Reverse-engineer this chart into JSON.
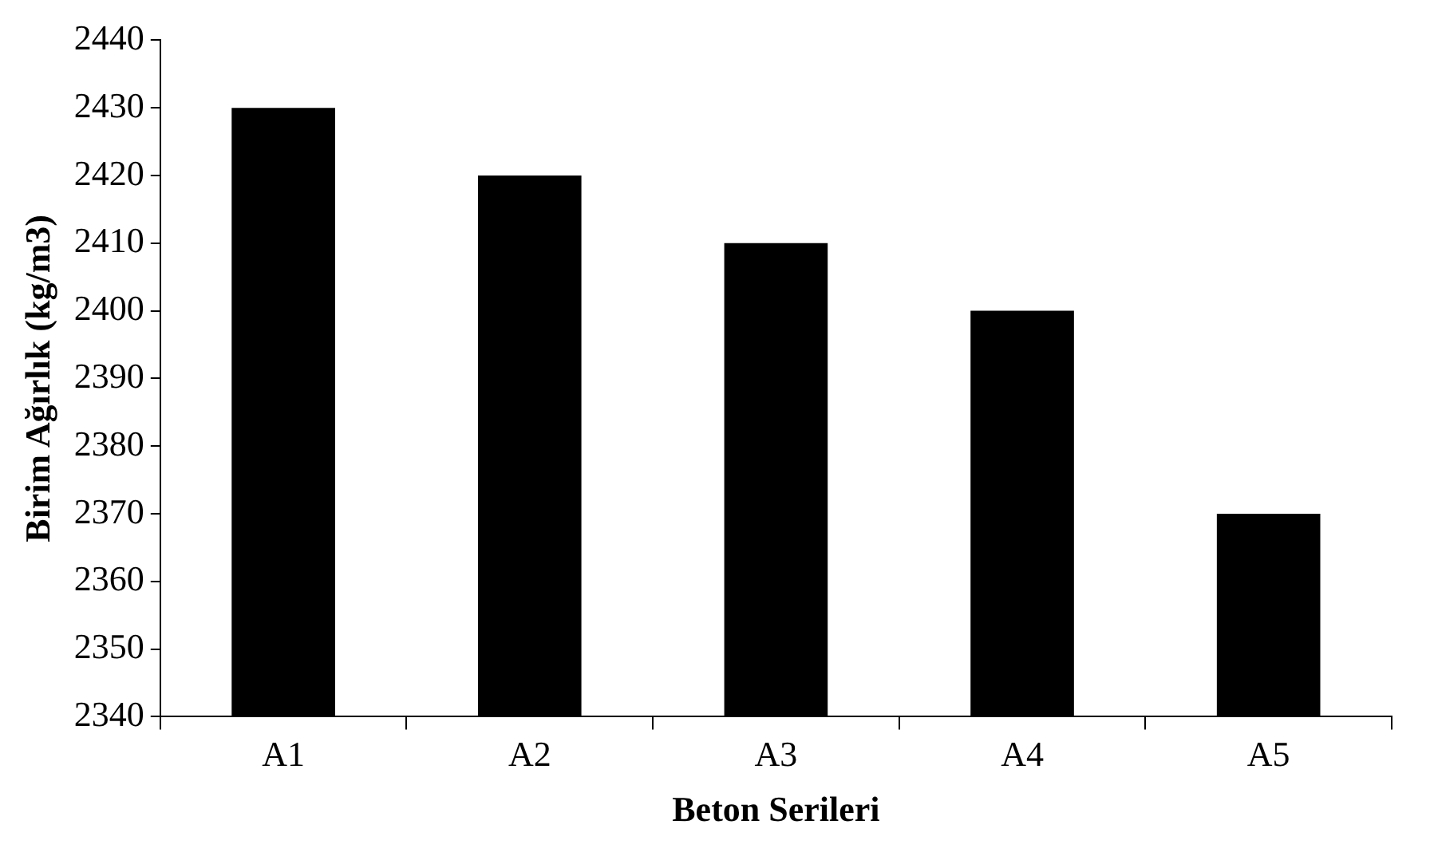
{
  "chart_data": {
    "type": "bar",
    "xlabel": "Beton Serileri",
    "ylabel": "Birim Ağırlık (kg/m3)",
    "categories": [
      "A1",
      "A2",
      "A3",
      "A4",
      "A5"
    ],
    "values": [
      2430,
      2420,
      2410,
      2400,
      2370
    ],
    "color": "#000000",
    "ylim": [
      2340,
      2440
    ],
    "yticks": [
      2340,
      2350,
      2360,
      2370,
      2380,
      2390,
      2400,
      2410,
      2420,
      2430,
      2440
    ],
    "grid": false,
    "legend": false
  }
}
